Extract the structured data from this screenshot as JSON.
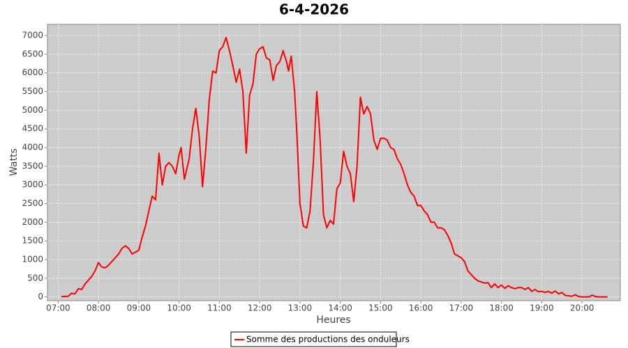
{
  "chart_data": {
    "type": "line",
    "title": "6-4-2026",
    "x_label": "Heures",
    "y_label": "Watts",
    "x": [
      "07:05",
      "07:15",
      "07:20",
      "07:25",
      "07:30",
      "07:35",
      "07:40",
      "07:45",
      "07:50",
      "07:55",
      "08:00",
      "08:05",
      "08:10",
      "08:15",
      "08:20",
      "08:25",
      "08:30",
      "08:35",
      "08:40",
      "08:45",
      "08:50",
      "08:55",
      "09:00",
      "09:05",
      "09:10",
      "09:15",
      "09:20",
      "09:25",
      "09:30",
      "09:35",
      "09:40",
      "09:45",
      "09:50",
      "09:55",
      "10:00",
      "10:03",
      "10:08",
      "10:15",
      "10:20",
      "10:25",
      "10:30",
      "10:35",
      "10:40",
      "10:45",
      "10:50",
      "10:55",
      "11:00",
      "11:05",
      "11:10",
      "11:15",
      "11:20",
      "11:25",
      "11:30",
      "11:35",
      "11:40",
      "11:45",
      "11:50",
      "11:55",
      "12:00",
      "12:05",
      "12:10",
      "12:15",
      "12:20",
      "12:25",
      "12:30",
      "12:35",
      "12:40",
      "12:43",
      "12:47",
      "12:52",
      "12:55",
      "13:00",
      "13:05",
      "13:10",
      "13:15",
      "13:20",
      "13:25",
      "13:30",
      "13:35",
      "13:40",
      "13:45",
      "13:50",
      "13:55",
      "14:00",
      "14:05",
      "14:10",
      "14:15",
      "14:20",
      "14:25",
      "14:30",
      "14:35",
      "14:40",
      "14:45",
      "14:50",
      "14:55",
      "15:00",
      "15:05",
      "15:10",
      "15:15",
      "15:20",
      "15:25",
      "15:30",
      "15:35",
      "15:40",
      "15:45",
      "15:50",
      "15:55",
      "16:00",
      "16:05",
      "16:10",
      "16:15",
      "16:20",
      "16:25",
      "16:30",
      "16:35",
      "16:40",
      "16:45",
      "16:50",
      "16:55",
      "17:00",
      "17:05",
      "17:10",
      "17:15",
      "17:20",
      "17:25",
      "17:30",
      "17:35",
      "17:40",
      "17:45",
      "17:50",
      "17:55",
      "18:00",
      "18:05",
      "18:10",
      "18:15",
      "18:20",
      "18:25",
      "18:30",
      "18:35",
      "18:40",
      "18:45",
      "18:50",
      "18:55",
      "19:00",
      "19:05",
      "19:10",
      "19:15",
      "19:20",
      "19:25",
      "19:30",
      "19:35",
      "19:40",
      "19:45",
      "19:50",
      "19:55",
      "20:00",
      "20:05",
      "20:10",
      "20:15",
      "20:20",
      "20:25",
      "20:30",
      "20:38"
    ],
    "series": [
      {
        "name": "Somme des productions des onduleurs",
        "color": "#ff0000",
        "values": [
          10,
          20,
          100,
          80,
          220,
          200,
          350,
          450,
          550,
          700,
          920,
          800,
          780,
          850,
          950,
          1050,
          1150,
          1300,
          1370,
          1300,
          1150,
          1200,
          1250,
          1600,
          1900,
          2300,
          2700,
          2600,
          3850,
          3000,
          3500,
          3600,
          3500,
          3300,
          3800,
          4000,
          3150,
          3700,
          4500,
          5050,
          4300,
          2950,
          4000,
          5300,
          6050,
          6000,
          6600,
          6700,
          6950,
          6600,
          6200,
          5750,
          6100,
          5500,
          3850,
          5400,
          5700,
          6500,
          6650,
          6700,
          6400,
          6350,
          5800,
          6200,
          6300,
          6600,
          6300,
          6050,
          6450,
          5500,
          4500,
          2500,
          1900,
          1850,
          2300,
          3600,
          5500,
          4200,
          2200,
          1850,
          2050,
          1950,
          2900,
          3050,
          3900,
          3500,
          3300,
          2550,
          3500,
          5350,
          4900,
          5100,
          4900,
          4200,
          3950,
          4250,
          4250,
          4200,
          4000,
          3950,
          3700,
          3550,
          3300,
          3000,
          2800,
          2700,
          2450,
          2450,
          2300,
          2200,
          2000,
          2000,
          1850,
          1850,
          1800,
          1650,
          1450,
          1150,
          1100,
          1050,
          950,
          700,
          600,
          500,
          430,
          400,
          370,
          380,
          250,
          350,
          250,
          320,
          230,
          300,
          250,
          220,
          250,
          250,
          200,
          250,
          150,
          200,
          140,
          150,
          120,
          150,
          100,
          160,
          80,
          120,
          40,
          30,
          20,
          60,
          10,
          0,
          0,
          0,
          50,
          10,
          0,
          0,
          0
        ]
      }
    ],
    "xlim": [
      "06:44",
      "20:57"
    ],
    "xticks": [
      "07:00",
      "08:00",
      "09:00",
      "10:00",
      "11:00",
      "12:00",
      "13:00",
      "14:00",
      "15:00",
      "16:00",
      "17:00",
      "18:00",
      "19:00",
      "20:00"
    ],
    "ylim": [
      -100,
      7300
    ],
    "yticks": [
      0,
      500,
      1000,
      1500,
      2000,
      2500,
      3000,
      3500,
      4000,
      4500,
      5000,
      5500,
      6000,
      6500,
      7000
    ],
    "grid": true,
    "legend": "bottom"
  }
}
